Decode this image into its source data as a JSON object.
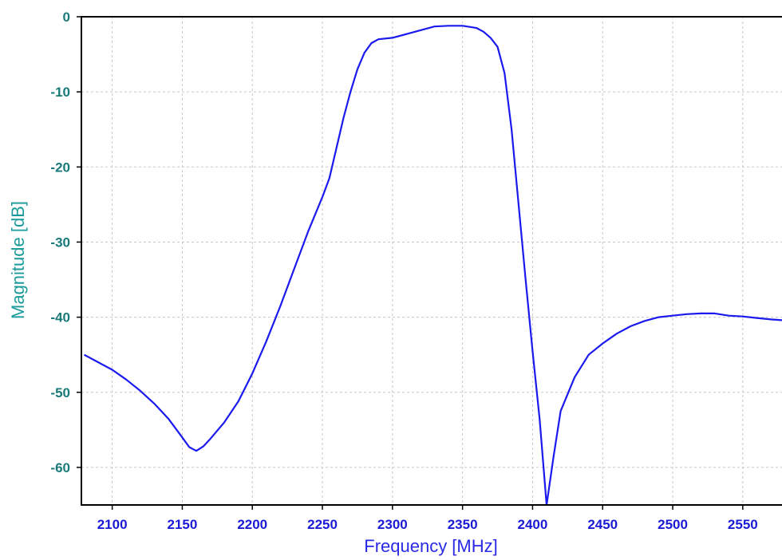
{
  "chart_data": {
    "type": "line",
    "xlabel": "Frequency [MHz]",
    "ylabel": "Magnitude [dB]",
    "xlim": [
      2078,
      2578
    ],
    "ylim": [
      -65,
      0
    ],
    "xticks": [
      2100,
      2150,
      2200,
      2250,
      2300,
      2350,
      2400,
      2450,
      2500,
      2550
    ],
    "yticks": [
      0,
      -10,
      -20,
      -30,
      -40,
      -50,
      -60
    ],
    "grid": true,
    "colors": {
      "line": "#1a1aee",
      "ytick": "#1a7a7a",
      "xtick": "#1a1ad6",
      "ylabel": "#1a9a9a",
      "xlabel": "#2a2ae6",
      "frame": "#000000",
      "grid": "#c8c8c8"
    },
    "series": [
      {
        "points": [
          [
            2080,
            -45.0
          ],
          [
            2090,
            -46.0
          ],
          [
            2100,
            -47.0
          ],
          [
            2110,
            -48.3
          ],
          [
            2120,
            -49.8
          ],
          [
            2130,
            -51.5
          ],
          [
            2140,
            -53.5
          ],
          [
            2150,
            -56.0
          ],
          [
            2155,
            -57.3
          ],
          [
            2160,
            -57.8
          ],
          [
            2165,
            -57.2
          ],
          [
            2170,
            -56.2
          ],
          [
            2180,
            -54.0
          ],
          [
            2190,
            -51.2
          ],
          [
            2200,
            -47.5
          ],
          [
            2210,
            -43.2
          ],
          [
            2220,
            -38.5
          ],
          [
            2230,
            -33.5
          ],
          [
            2240,
            -28.5
          ],
          [
            2250,
            -24.0
          ],
          [
            2255,
            -21.5
          ],
          [
            2260,
            -17.5
          ],
          [
            2265,
            -13.5
          ],
          [
            2270,
            -10.0
          ],
          [
            2275,
            -7.0
          ],
          [
            2280,
            -4.8
          ],
          [
            2285,
            -3.5
          ],
          [
            2290,
            -3.0
          ],
          [
            2300,
            -2.8
          ],
          [
            2310,
            -2.3
          ],
          [
            2320,
            -1.8
          ],
          [
            2330,
            -1.3
          ],
          [
            2340,
            -1.2
          ],
          [
            2350,
            -1.2
          ],
          [
            2360,
            -1.5
          ],
          [
            2365,
            -2.0
          ],
          [
            2370,
            -2.8
          ],
          [
            2375,
            -4.0
          ],
          [
            2380,
            -7.5
          ],
          [
            2385,
            -15.0
          ],
          [
            2390,
            -25.0
          ],
          [
            2395,
            -35.0
          ],
          [
            2400,
            -44.5
          ],
          [
            2405,
            -53.5
          ],
          [
            2410,
            -65.0
          ],
          [
            2415,
            -58.5
          ],
          [
            2420,
            -52.5
          ],
          [
            2430,
            -48.0
          ],
          [
            2440,
            -45.0
          ],
          [
            2450,
            -43.5
          ],
          [
            2460,
            -42.2
          ],
          [
            2470,
            -41.2
          ],
          [
            2480,
            -40.5
          ],
          [
            2490,
            -40.0
          ],
          [
            2500,
            -39.8
          ],
          [
            2510,
            -39.6
          ],
          [
            2520,
            -39.5
          ],
          [
            2530,
            -39.5
          ],
          [
            2540,
            -39.8
          ],
          [
            2550,
            -39.9
          ],
          [
            2560,
            -40.1
          ],
          [
            2570,
            -40.3
          ],
          [
            2578,
            -40.4
          ]
        ]
      }
    ]
  }
}
